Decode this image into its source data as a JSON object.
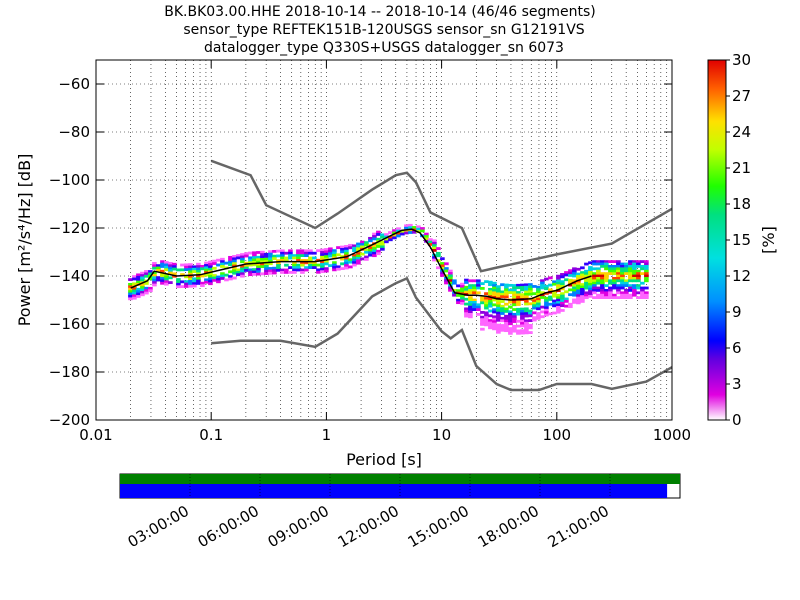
{
  "chart_data": {
    "type": "heatmap",
    "title_lines": [
      "BK.BK03.00.HHE   2018-10-14 -- 2018-10-14  (46/46 segments)",
      "sensor_type REFTEK151B-120USGS sensor_sn G12191VS",
      "datalogger_type Q330S+USGS datalogger_sn 6073"
    ],
    "xlabel": "Period [s]",
    "ylabel": "Power [m²/s⁴/Hz] [dB]",
    "x_scale": "log",
    "xlim": [
      0.01,
      1000
    ],
    "x_ticks": [
      0.01,
      0.1,
      1,
      10,
      100,
      1000
    ],
    "x_tick_labels": [
      "0.01",
      "0.1",
      "1",
      "10",
      "100",
      "1000"
    ],
    "ylim": [
      -200,
      -50
    ],
    "y_ticks": [
      -200,
      -180,
      -160,
      -140,
      -120,
      -100,
      -80,
      -60
    ],
    "grid": true,
    "colorbar": {
      "label": "[%]",
      "range": [
        0,
        30
      ],
      "ticks": [
        0,
        3,
        6,
        9,
        12,
        15,
        18,
        21,
        24,
        27,
        30
      ]
    },
    "noise_models": [
      {
        "x": [
          0.1,
          0.22,
          0.3,
          0.8,
          1.25,
          2.5,
          4,
          5,
          6,
          8,
          15,
          22,
          30,
          100,
          300,
          1000
        ],
        "y": [
          -92,
          -98,
          -110.5,
          -120,
          -114,
          -104,
          -98,
          -97,
          -101,
          -113.5,
          -120,
          -138,
          -136.5,
          -131,
          -126.5,
          -112
        ]
      },
      {
        "x": [
          0.1,
          0.18,
          0.4,
          0.8,
          1.25,
          2.5,
          4,
          5,
          6,
          10,
          12,
          15,
          20,
          30,
          40,
          70,
          100,
          200,
          300,
          600,
          1000
        ],
        "y": [
          -168,
          -167,
          -167,
          -169.5,
          -164,
          -148.5,
          -143,
          -141,
          -149,
          -163,
          -166,
          -162.5,
          -177.5,
          -185,
          -187.5,
          -187.5,
          -185,
          -185,
          -187,
          -184,
          -178
        ]
      }
    ],
    "median_psd": {
      "x": [
        0.02,
        0.028,
        0.032,
        0.05,
        0.08,
        0.12,
        0.2,
        0.4,
        0.8,
        1.5,
        2.5,
        3.5,
        4.5,
        5.5,
        6.5,
        8,
        10,
        13,
        17,
        20,
        25,
        30,
        40,
        60,
        80,
        100,
        150,
        200
      ],
      "y": [
        -145,
        -142,
        -138,
        -140,
        -139.5,
        -137.5,
        -135,
        -134,
        -134,
        -132,
        -127,
        -123.5,
        -121,
        -120.5,
        -122,
        -128,
        -137,
        -147,
        -148,
        -148,
        -148.5,
        -149.5,
        -150,
        -149.5,
        -147,
        -146,
        -142,
        -140
      ]
    },
    "time_axis": {
      "labels": [
        "03:00:00",
        "06:00:00",
        "09:00:00",
        "12:00:00",
        "15:00:00",
        "18:00:00",
        "21:00:00"
      ],
      "coverage_fraction": 0.977
    }
  }
}
